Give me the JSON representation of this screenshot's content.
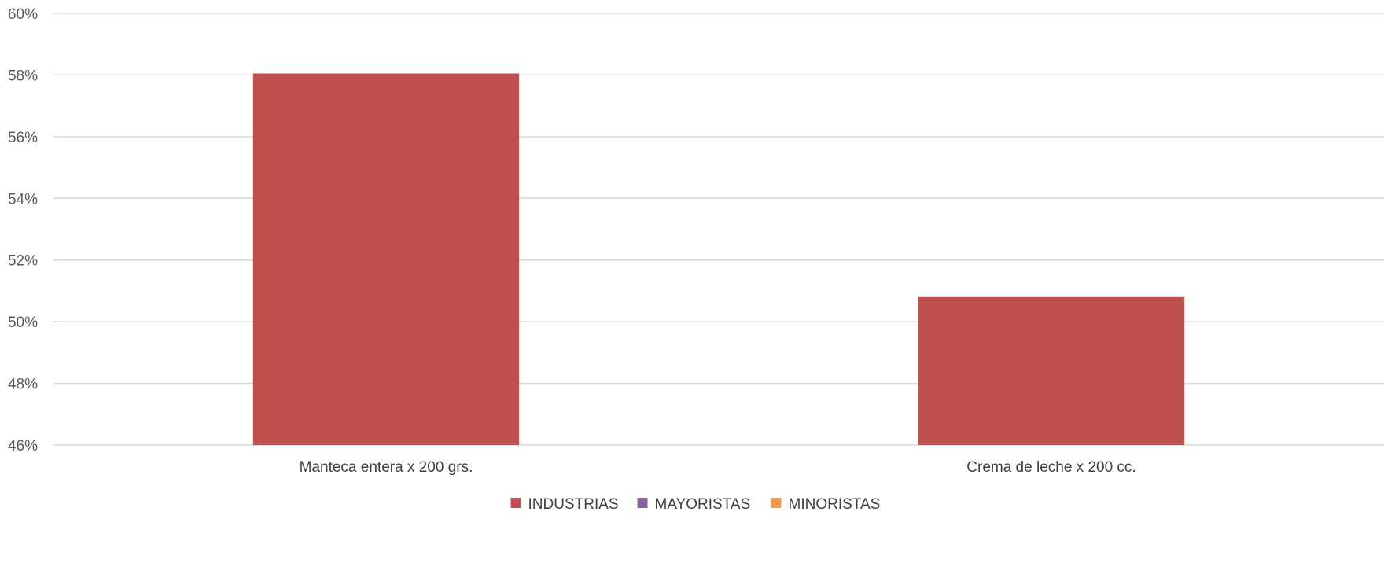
{
  "chart_data": {
    "type": "bar",
    "categories": [
      "Manteca entera x 200 grs.",
      "Crema de leche x 200 cc."
    ],
    "series": [
      {
        "name": "INDUSTRIAS",
        "values": [
          58.05,
          50.8
        ],
        "color": "#C0504D"
      },
      {
        "name": "MAYORISTAS",
        "values": [
          null,
          null
        ],
        "color": "#8064A2"
      },
      {
        "name": "MINORISTAS",
        "values": [
          null,
          null
        ],
        "color": "#F79646"
      }
    ],
    "ylim": [
      46,
      60
    ],
    "yticks": [
      46,
      48,
      50,
      52,
      54,
      56,
      58,
      60
    ],
    "ytick_labels": [
      "46%",
      "48%",
      "50%",
      "52%",
      "54%",
      "56%",
      "58%",
      "60%"
    ],
    "title": "",
    "xlabel": "",
    "ylabel": "",
    "grid": true,
    "legend_position": "bottom"
  }
}
